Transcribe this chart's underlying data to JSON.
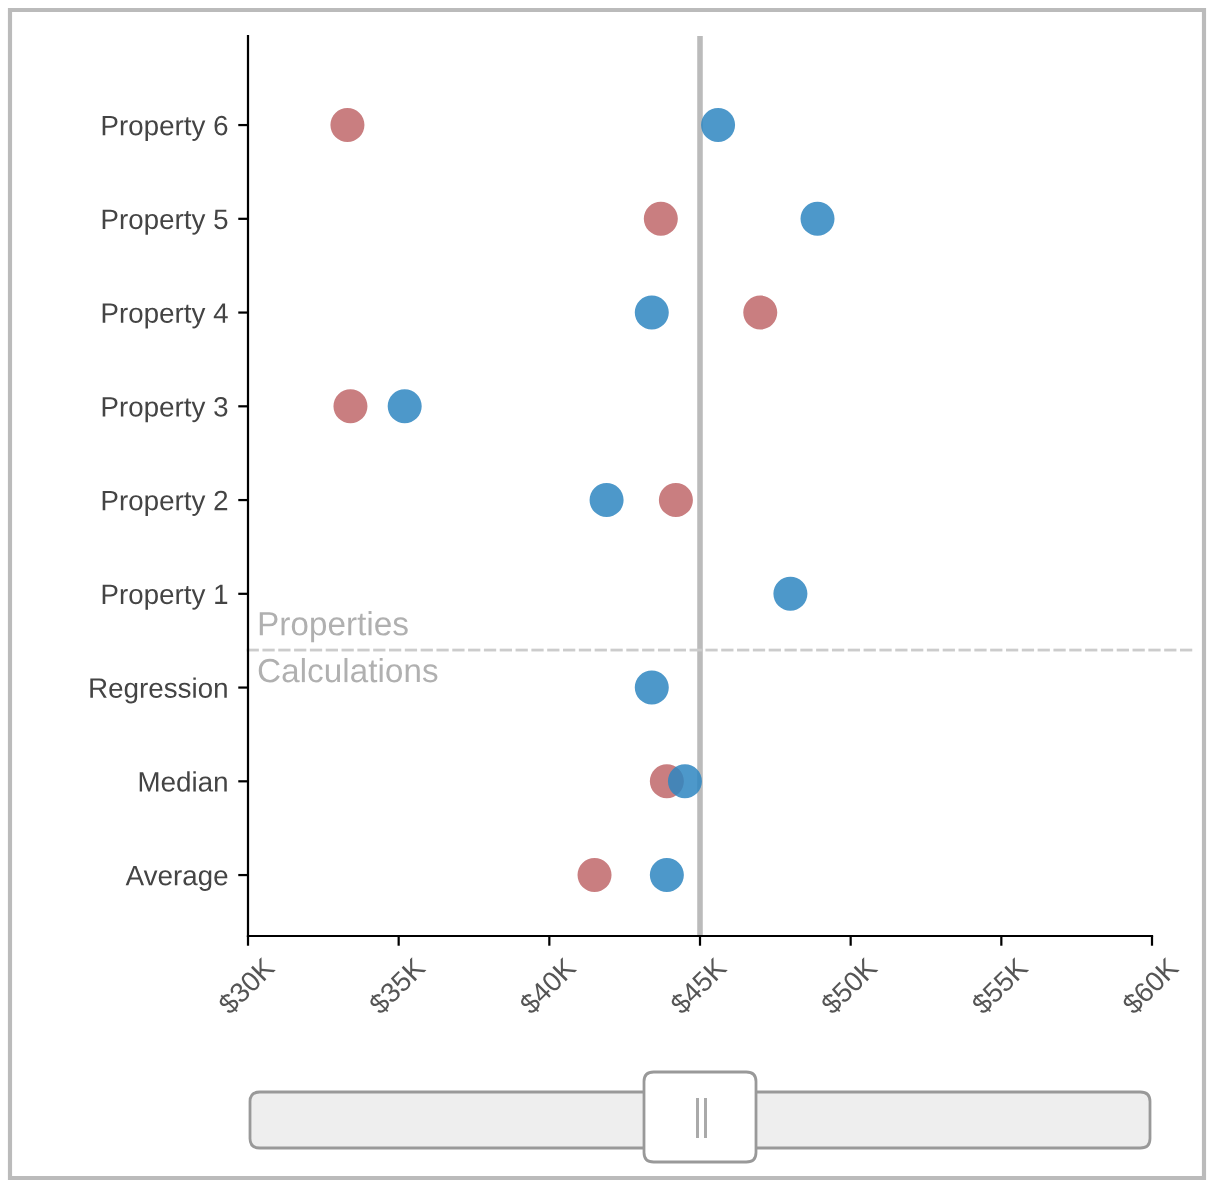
{
  "chart_data": {
    "type": "scatter",
    "orientation": "horizontal",
    "categories": [
      "Property 6",
      "Property 5",
      "Property 4",
      "Property 3",
      "Property 2",
      "Property 1",
      "Regression",
      "Median",
      "Average"
    ],
    "series": [
      {
        "color": "#c0676a",
        "values": [
          33.3,
          43.7,
          47.0,
          33.4,
          44.2,
          null,
          null,
          43.9,
          41.5
        ]
      },
      {
        "color": "#2e86c1",
        "values": [
          45.6,
          48.9,
          43.4,
          35.2,
          41.9,
          48.0,
          43.4,
          44.5,
          43.9
        ]
      }
    ],
    "xlim": [
      30,
      60
    ],
    "xticks": [
      {
        "value": 30,
        "label": "$30K"
      },
      {
        "value": 35,
        "label": "$35K"
      },
      {
        "value": 40,
        "label": "$40K"
      },
      {
        "value": 45,
        "label": "$45K"
      },
      {
        "value": 50,
        "label": "$50K"
      },
      {
        "value": 55,
        "label": "$55K"
      },
      {
        "value": 60,
        "label": "$60K"
      }
    ],
    "ref_lines": [
      {
        "axis": "x",
        "value": 45,
        "color": "#bbbbbb",
        "line_style": "solid"
      }
    ],
    "annotations": [
      "Properties",
      "Calculations"
    ],
    "marker": "circle",
    "grid": false,
    "legend": false
  }
}
